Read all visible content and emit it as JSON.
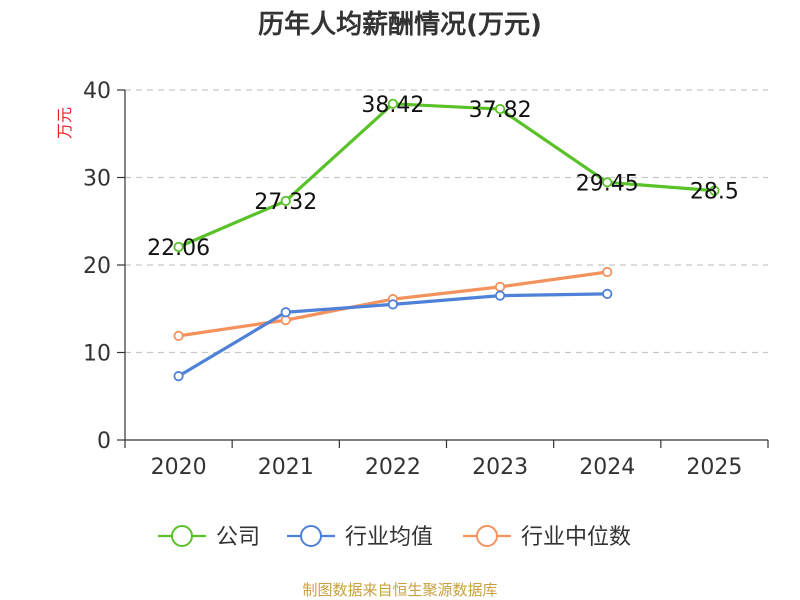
{
  "chart_data": {
    "type": "line",
    "title": "历年人均薪酬情况(万元)",
    "ylabel": "万元",
    "xlabel": "",
    "categories": [
      "2020",
      "2021",
      "2022",
      "2023",
      "2024",
      "2025"
    ],
    "ylim": [
      0,
      40
    ],
    "yticks": [
      0,
      10,
      20,
      30,
      40
    ],
    "grid": true,
    "legend_position": "bottom",
    "series": [
      {
        "name": "公司",
        "color": "#5ac229",
        "values": [
          22.06,
          27.32,
          38.42,
          37.82,
          29.45,
          28.5
        ],
        "labels": [
          "22.06",
          "27.32",
          "38.42",
          "37.82",
          "29.45",
          "28.5"
        ]
      },
      {
        "name": "行业均值",
        "color": "#4f81d8",
        "values": [
          7.3,
          14.6,
          15.5,
          16.5,
          16.7,
          null
        ]
      },
      {
        "name": "行业中位数",
        "color": "#f4925e",
        "values": [
          11.9,
          13.7,
          16.1,
          17.5,
          19.2,
          null
        ]
      }
    ],
    "source": "制图数据来自恒生聚源数据库"
  }
}
